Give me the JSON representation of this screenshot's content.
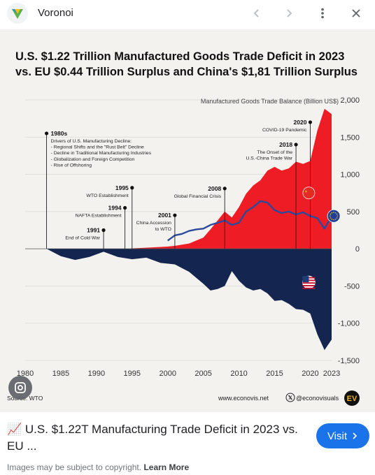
{
  "app": {
    "title": "Voronoi",
    "icon": "voronoi-logo-icon"
  },
  "toolbar": {
    "prev_icon": "chevron-left-icon",
    "next_icon": "chevron-right-icon",
    "more_icon": "more-vert-icon",
    "close_icon": "close-icon"
  },
  "figure": {
    "title_line1": "U.S. $1.22 Trillion Manufactured Goods Trade Deficit in 2023",
    "title_line2": "vs. EU $0.44 Trillion Surplus and China's $1,81 Trillion Surplus",
    "source": "Source: WTO",
    "site": "www.econovis.net",
    "handle": "@econovisuals",
    "brand_badge": "EV"
  },
  "chart_data": {
    "type": "area",
    "ylabel": "Manufactured Goods Trade Balance (Billion US$)",
    "xlim": [
      1980,
      2023
    ],
    "ylim": [
      -1500,
      2000
    ],
    "x_ticks": [
      1980,
      1985,
      1990,
      1995,
      2000,
      2005,
      2010,
      2015,
      2020,
      2023
    ],
    "y_ticks": [
      2000,
      1500,
      1000,
      500,
      0,
      -500,
      -1000,
      -1500
    ],
    "y_tick_labels": [
      "2,000",
      "1,500",
      "1,000",
      "500",
      "0",
      "-500",
      "-1,000",
      "-1,500"
    ],
    "grid": true,
    "series": [
      {
        "name": "China",
        "kind": "area",
        "color": "#ee1c25",
        "x": [
          1980,
          1983,
          1990,
          1994,
          1995,
          2000,
          2001,
          2003,
          2005,
          2006,
          2007,
          2008,
          2009,
          2010,
          2011,
          2012,
          2013,
          2014,
          2015,
          2016,
          2017,
          2018,
          2019,
          2020,
          2021,
          2022,
          2023
        ],
        "y": [
          0,
          0,
          0,
          -10,
          5,
          30,
          40,
          70,
          150,
          260,
          380,
          500,
          420,
          560,
          740,
          850,
          920,
          1050,
          1100,
          1050,
          1080,
          1170,
          1140,
          1180,
          1590,
          1880,
          1810
        ]
      },
      {
        "name": "EU",
        "kind": "line",
        "color": "#2b4a9b",
        "x": [
          2000,
          2001,
          2002,
          2003,
          2004,
          2005,
          2006,
          2007,
          2008,
          2009,
          2010,
          2011,
          2012,
          2013,
          2014,
          2015,
          2016,
          2017,
          2018,
          2019,
          2020,
          2021,
          2022,
          2023
        ],
        "y": [
          110,
          180,
          200,
          240,
          260,
          270,
          320,
          350,
          380,
          320,
          350,
          500,
          560,
          640,
          620,
          520,
          480,
          500,
          460,
          490,
          440,
          410,
          270,
          440
        ]
      },
      {
        "name": "U.S.",
        "kind": "area",
        "color": "#14254f",
        "x": [
          1980,
          1983,
          1985,
          1987,
          1989,
          1991,
          1993,
          1995,
          1997,
          1999,
          2001,
          2003,
          2005,
          2006,
          2007,
          2008,
          2009,
          2010,
          2011,
          2012,
          2013,
          2014,
          2015,
          2016,
          2017,
          2018,
          2019,
          2020,
          2021,
          2022,
          2023
        ],
        "y": [
          0,
          0,
          -100,
          -150,
          -110,
          -40,
          -110,
          -140,
          -120,
          -190,
          -210,
          -310,
          -470,
          -560,
          -540,
          -500,
          -300,
          -430,
          -520,
          -560,
          -540,
          -600,
          -700,
          -690,
          -740,
          -810,
          -820,
          -870,
          -1150,
          -1360,
          -1220
        ]
      }
    ],
    "annotations": [
      {
        "year": "1980s",
        "x": 1983,
        "y": 1550,
        "lines": [
          "Drivers of U.S. Manufacturing Decline:",
          "- Regional Shifts and the \"Rust Belt\" Decline",
          "- Decline in Traditional Manufacturing Industries",
          "- Globalization and Foreign Competition",
          "- Rise of Offshoring"
        ]
      },
      {
        "year": "1991",
        "x": 1991,
        "y": 250,
        "lines": [
          "End of Cold War"
        ]
      },
      {
        "year": "1994",
        "x": 1994,
        "y": 550,
        "lines": [
          "NAFTA Establishment"
        ]
      },
      {
        "year": "1995",
        "x": 1995,
        "y": 820,
        "lines": [
          "WTO Establishment"
        ]
      },
      {
        "year": "2001",
        "x": 2001,
        "y": 450,
        "lines": [
          "China Accession",
          "to WTO"
        ]
      },
      {
        "year": "2008",
        "x": 2008,
        "y": 810,
        "lines": [
          "Global Financial Crisis"
        ]
      },
      {
        "year": "2018",
        "x": 2018,
        "y": 1400,
        "lines": [
          "The Onset of the",
          "U.S.-China Trade War"
        ]
      },
      {
        "year": "2020",
        "x": 2020,
        "y": 1700,
        "lines": [
          "COVID-19 Pandemic"
        ]
      }
    ]
  },
  "caption": {
    "icon": "📈",
    "text": "U.S. $1.22T Manufacturing Trade Deficit in 2023 vs. EU ..."
  },
  "visit": {
    "label": "Visit"
  },
  "copyright": {
    "text": "Images may be subject to copyright.",
    "link": "Learn More"
  }
}
